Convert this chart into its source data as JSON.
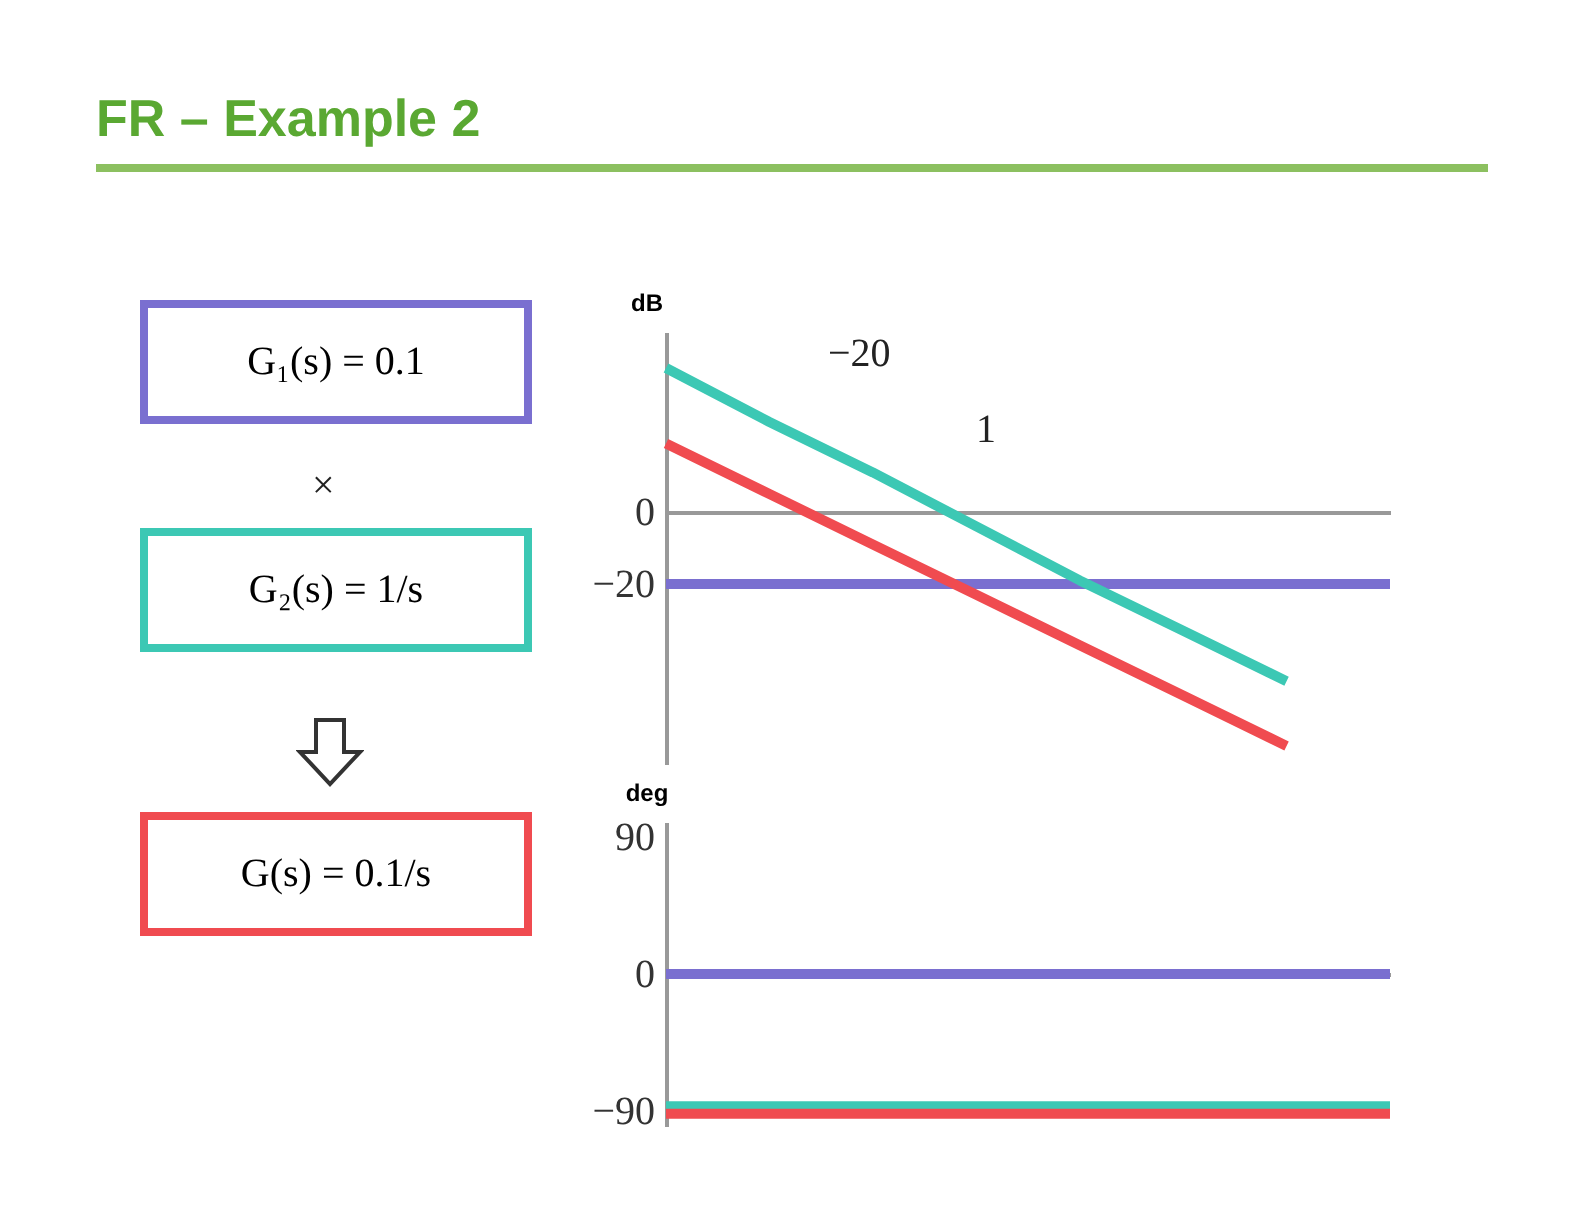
{
  "chart_data": [
    {
      "type": "line",
      "title": "FR – Example 2",
      "ylabel": "dB",
      "tick_labels": "y",
      "categories": [
        null,
        null,
        null,
        null,
        null,
        null,
        null,
        null
      ],
      "ylim": [
        -70,
        50
      ],
      "yticks": [
        0,
        -20
      ],
      "annotations": [
        "G₁(s) = 0.1",
        "×",
        "G₂(s) = 1/s",
        "G(s) = 0.1/s",
        "−20",
        "1"
      ],
      "series": [
        {
          "color": "#7a6fd0",
          "values": [
            -20,
            -20,
            -20,
            -20,
            -20,
            -20,
            -20,
            -20
          ]
        },
        {
          "color": "#3cc8b4",
          "values": [
            40,
            25,
            11,
            -4,
            -19,
            -33,
            -47,
            null
          ]
        },
        {
          "color": "#f04b50",
          "values": [
            19,
            5,
            -9,
            -23,
            -37,
            -51,
            -65,
            null
          ]
        }
      ]
    },
    {
      "type": "line",
      "ylabel": "deg",
      "tick_labels": "y",
      "categories": [
        null,
        null,
        null,
        null,
        null,
        null,
        null,
        null
      ],
      "ylim": [
        -100,
        100
      ],
      "yticks": [
        90,
        0,
        -90
      ],
      "series": [
        {
          "color": "#7a6fd0",
          "values": [
            0,
            0,
            0,
            0,
            0,
            0,
            0,
            0
          ]
        },
        {
          "color": "#3cc8b4",
          "values": [
            -87,
            -87,
            -87,
            -87,
            -87,
            -87,
            -87,
            -87
          ]
        },
        {
          "color": "#f04b50",
          "values": [
            -92,
            -92,
            -92,
            -92,
            -92,
            -92,
            -92,
            -92
          ]
        }
      ]
    }
  ]
}
